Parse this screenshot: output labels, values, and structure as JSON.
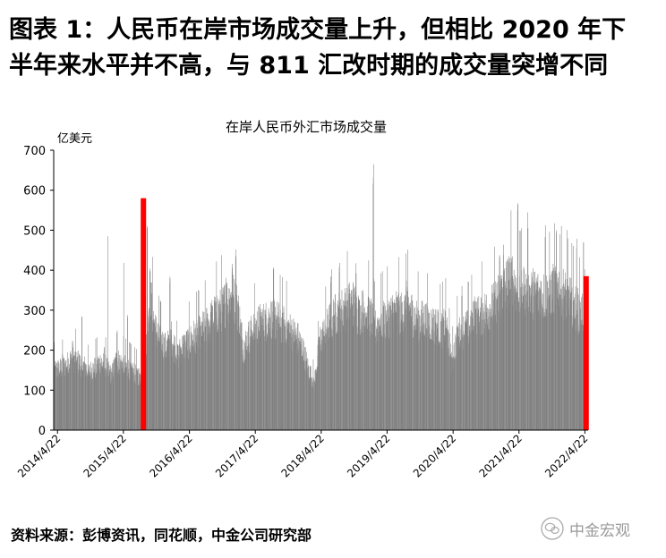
{
  "heading": {
    "line1": "图表 1：人民币在岸市场成交量上升，但相比 2020 年下",
    "line2": "半年来水平并不高，与 811 汇改时期的成交量突增不同"
  },
  "source": "资料来源：彭博资讯，同花顺，中金公司研究部",
  "watermark": {
    "text": "中金宏观",
    "icon": "wechat-icon"
  },
  "chart_data": {
    "type": "bar",
    "title": "在岸人民币外汇市场成交量",
    "ylabel": "亿美元",
    "ylim": [
      0,
      700
    ],
    "yticks": [
      0,
      100,
      200,
      300,
      400,
      500,
      600,
      700
    ],
    "x_range": [
      "2014-04-01",
      "2022-05-10"
    ],
    "xticks": [
      "2014/4/22",
      "2015/4/22",
      "2016/4/22",
      "2017/4/22",
      "2018/4/22",
      "2019/4/22",
      "2020/4/22",
      "2021/4/22",
      "2022/4/22"
    ],
    "grid": false,
    "colors": {
      "series": "#808080",
      "highlight": "#ff0000"
    },
    "series": [
      {
        "values": [
          [
            "2014-04",
            155
          ],
          [
            "2014-05",
            160
          ],
          [
            "2014-06",
            170
          ],
          [
            "2014-07",
            185
          ],
          [
            "2014-08",
            175
          ],
          [
            "2014-09",
            165
          ],
          [
            "2014-10",
            150
          ],
          [
            "2014-11",
            160
          ],
          [
            "2014-12",
            175
          ],
          [
            "2015-01",
            165
          ],
          [
            "2015-02",
            140
          ],
          [
            "2015-03",
            180
          ],
          [
            "2015-04",
            170
          ],
          [
            "2015-05",
            160
          ],
          [
            "2015-06",
            150
          ],
          [
            "2015-07",
            140
          ],
          [
            "2015-08",
            135
          ],
          [
            "2015-09",
            360
          ],
          [
            "2015-10",
            260
          ],
          [
            "2015-11",
            230
          ],
          [
            "2015-12",
            210
          ],
          [
            "2016-01",
            240
          ],
          [
            "2016-02",
            190
          ],
          [
            "2016-03",
            215
          ],
          [
            "2016-04",
            225
          ],
          [
            "2016-05",
            240
          ],
          [
            "2016-06",
            250
          ],
          [
            "2016-07",
            265
          ],
          [
            "2016-08",
            280
          ],
          [
            "2016-09",
            300
          ],
          [
            "2016-10",
            310
          ],
          [
            "2016-11",
            335
          ],
          [
            "2016-12",
            345
          ],
          [
            "2017-01",
            320
          ],
          [
            "2017-02",
            210
          ],
          [
            "2017-03",
            240
          ],
          [
            "2017-04",
            260
          ],
          [
            "2017-05",
            275
          ],
          [
            "2017-06",
            280
          ],
          [
            "2017-07",
            290
          ],
          [
            "2017-08",
            285
          ],
          [
            "2017-09",
            275
          ],
          [
            "2017-10",
            265
          ],
          [
            "2017-11",
            250
          ],
          [
            "2017-12",
            235
          ],
          [
            "2018-01",
            200
          ],
          [
            "2018-02",
            150
          ],
          [
            "2018-03",
            120
          ],
          [
            "2018-04",
            230
          ],
          [
            "2018-05",
            255
          ],
          [
            "2018-06",
            285
          ],
          [
            "2018-07",
            300
          ],
          [
            "2018-08",
            310
          ],
          [
            "2018-09",
            320
          ],
          [
            "2018-10",
            330
          ],
          [
            "2018-11",
            300
          ],
          [
            "2018-12",
            310
          ],
          [
            "2019-01",
            300
          ],
          [
            "2019-02",
            260
          ],
          [
            "2019-03",
            280
          ],
          [
            "2019-04",
            285
          ],
          [
            "2019-05",
            300
          ],
          [
            "2019-06",
            310
          ],
          [
            "2019-07",
            300
          ],
          [
            "2019-08",
            320
          ],
          [
            "2019-09",
            295
          ],
          [
            "2019-10",
            280
          ],
          [
            "2019-11",
            285
          ],
          [
            "2019-12",
            275
          ],
          [
            "2020-01",
            270
          ],
          [
            "2020-02",
            260
          ],
          [
            "2020-03",
            270
          ],
          [
            "2020-04",
            175
          ],
          [
            "2020-05",
            240
          ],
          [
            "2020-06",
            255
          ],
          [
            "2020-07",
            265
          ],
          [
            "2020-08",
            285
          ],
          [
            "2020-09",
            295
          ],
          [
            "2020-10",
            305
          ],
          [
            "2020-11",
            315
          ],
          [
            "2020-12",
            330
          ],
          [
            "2021-01",
            355
          ],
          [
            "2021-02",
            380
          ],
          [
            "2021-03",
            395
          ],
          [
            "2021-04",
            350
          ],
          [
            "2021-05",
            360
          ],
          [
            "2021-06",
            350
          ],
          [
            "2021-07",
            355
          ],
          [
            "2021-08",
            350
          ],
          [
            "2021-09",
            345
          ],
          [
            "2021-10",
            355
          ],
          [
            "2021-11",
            375
          ],
          [
            "2021-12",
            360
          ],
          [
            "2022-01",
            340
          ],
          [
            "2022-02",
            330
          ],
          [
            "2022-03",
            310
          ],
          [
            "2022-04",
            300
          ],
          [
            "2022-05",
            220
          ]
        ]
      }
    ],
    "highlights": [
      {
        "date": "2015-08-11",
        "value": 580
      },
      {
        "date": "2022-04-29",
        "value": 385
      }
    ],
    "peaks": [
      [
        "2014-05-20",
        200
      ],
      [
        "2014-07-15",
        230
      ],
      [
        "2014-09-05",
        285
      ],
      [
        "2015-01-05",
        210
      ],
      [
        "2015-01-25",
        485
      ],
      [
        "2015-03-18",
        260
      ],
      [
        "2015-04-25",
        425
      ],
      [
        "2015-05-15",
        305
      ],
      [
        "2015-09-01",
        520
      ],
      [
        "2016-01-05",
        385
      ],
      [
        "2016-06-24",
        245
      ],
      [
        "2016-11-11",
        395
      ],
      [
        "2016-12-15",
        420
      ],
      [
        "2017-01-04",
        460
      ],
      [
        "2018-06-15",
        390
      ],
      [
        "2018-08-01",
        420
      ],
      [
        "2018-09-15",
        400
      ],
      [
        "2018-11-01",
        425
      ],
      [
        "2019-02-05",
        665
      ],
      [
        "2019-06-20",
        340
      ],
      [
        "2019-08-06",
        385
      ],
      [
        "2020-06-10",
        365
      ],
      [
        "2020-08-20",
        340
      ],
      [
        "2021-01-05",
        450
      ],
      [
        "2021-01-25",
        470
      ],
      [
        "2021-04-15",
        580
      ],
      [
        "2021-06-10",
        545
      ],
      [
        "2021-09-15",
        520
      ],
      [
        "2021-11-15",
        500
      ],
      [
        "2021-12-05",
        530
      ],
      [
        "2022-01-15",
        510
      ],
      [
        "2022-03-07",
        480
      ],
      [
        "2022-04-15",
        475
      ]
    ]
  }
}
